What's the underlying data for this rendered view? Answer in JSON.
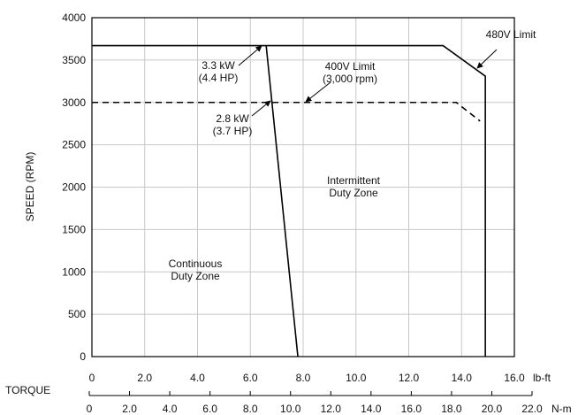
{
  "chart_data": {
    "type": "line",
    "ylabel": "SPEED (RPM)",
    "xlabel": "TORQUE",
    "x_unit_top": "lb-ft",
    "x_unit_bottom": "N-m",
    "ylim": [
      0,
      4000
    ],
    "xlim_lbft": [
      0,
      16
    ],
    "xlim_nm": [
      0,
      22
    ],
    "grid": true,
    "y_ticks": [
      "0",
      "500",
      "1000",
      "1500",
      "2000",
      "2500",
      "3000",
      "3500",
      "4000"
    ],
    "x_ticks_lbft": [
      "0",
      "2.0",
      "4.0",
      "6.0",
      "8.0",
      "10.0",
      "12.0",
      "14.0",
      "16.0"
    ],
    "x_ticks_nm": [
      "0",
      "2.0",
      "4.0",
      "6.0",
      "8.0",
      "10.0",
      "12.0",
      "14.0",
      "16.0",
      "18.0",
      "20.0",
      "22.0"
    ],
    "series": [
      {
        "name": "480V Limit",
        "style": "solid",
        "x": [
          0,
          13.3,
          14.9,
          14.9
        ],
        "y": [
          3670,
          3670,
          3310,
          0
        ]
      },
      {
        "name": "400V Limit",
        "style": "dashed",
        "x": [
          0,
          13.8,
          14.7
        ],
        "y": [
          3000,
          3000,
          2780
        ]
      },
      {
        "name": "Continuous Duty",
        "style": "solid",
        "x": [
          6.6,
          7.8
        ],
        "y": [
          3670,
          0
        ]
      }
    ],
    "annotations": [
      {
        "lines": [
          "3.3 kW",
          "(4.4 HP)"
        ]
      },
      {
        "lines": [
          "2.8 kW",
          "(3.7 HP)"
        ]
      },
      {
        "lines": [
          "400V Limit",
          "(3,000 rpm)"
        ]
      },
      {
        "lines": [
          "480V Limit"
        ]
      },
      {
        "lines": [
          "Intermittent",
          "Duty Zone"
        ]
      },
      {
        "lines": [
          "Continuous",
          "Duty Zone"
        ]
      }
    ]
  }
}
